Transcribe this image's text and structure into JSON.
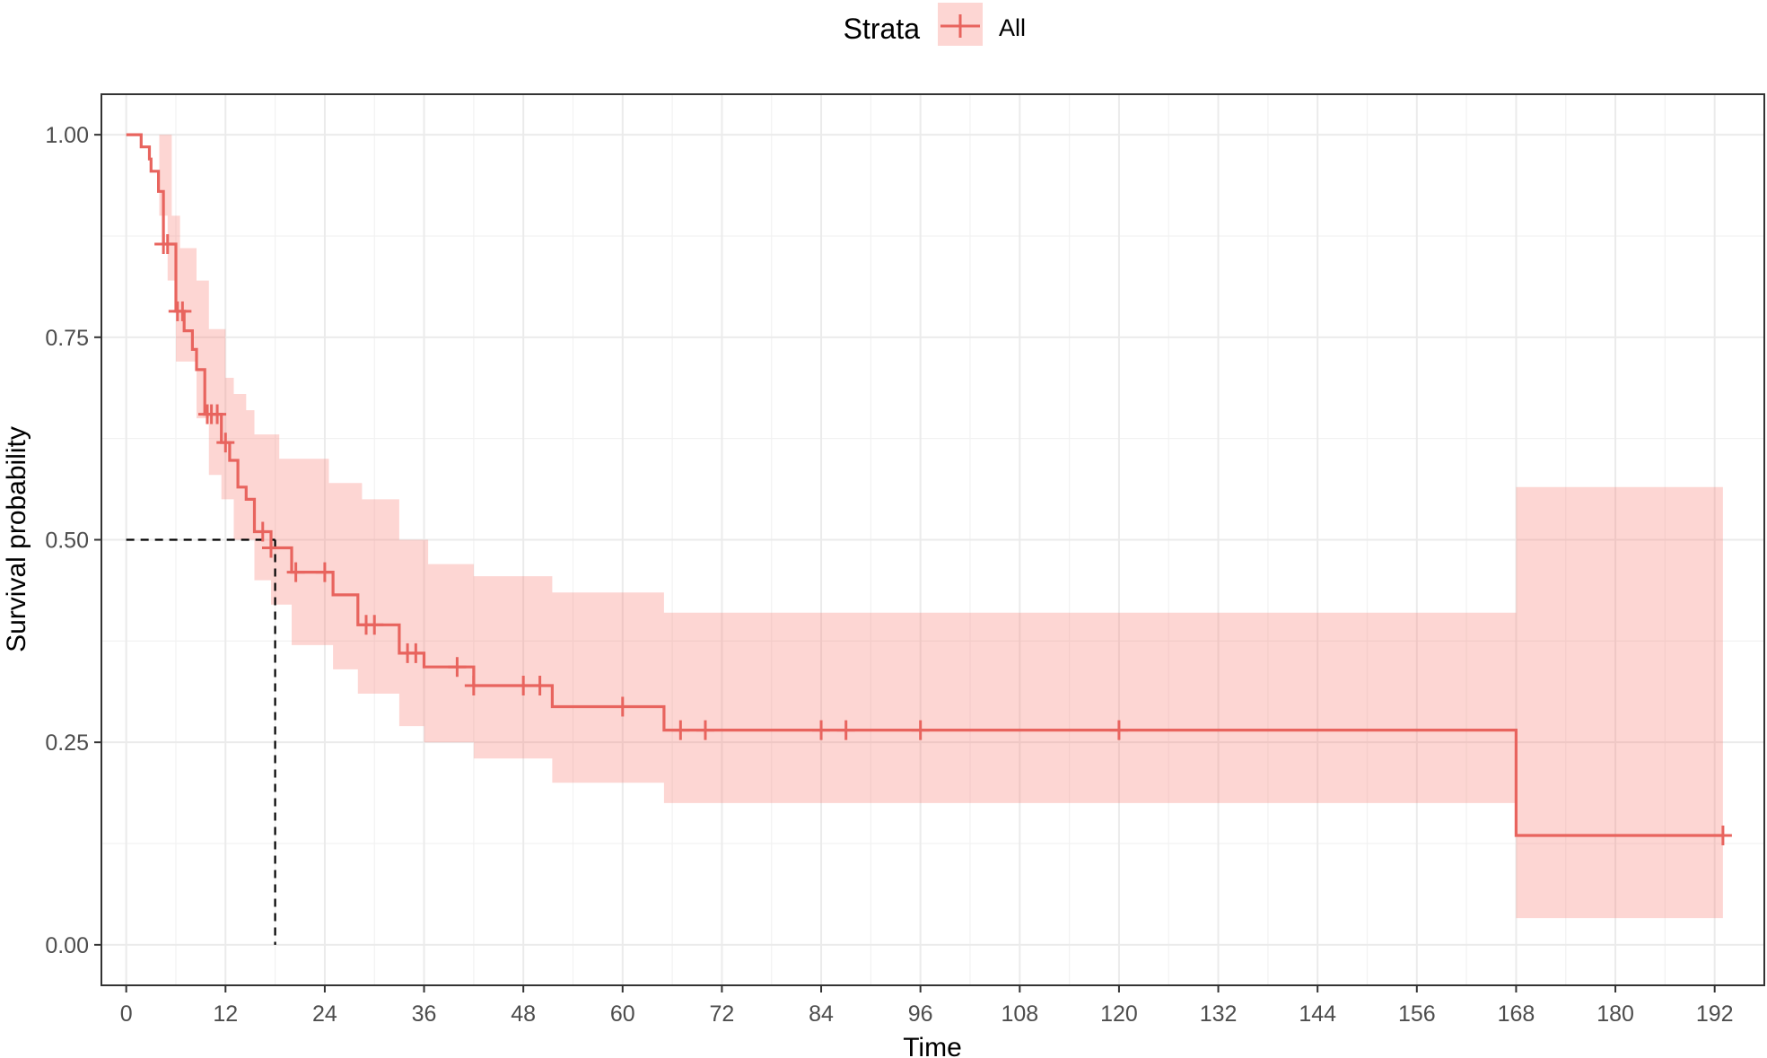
{
  "legend": {
    "title": "Strata",
    "entries": [
      "All"
    ]
  },
  "chart_data": {
    "type": "line",
    "subtype": "kaplan-meier survival curve with confidence band and censor marks",
    "xlabel": "Time",
    "ylabel": "Survival probability",
    "xlim": [
      -3,
      198
    ],
    "ylim": [
      -0.05,
      1.05
    ],
    "x_ticks": [
      0,
      12,
      24,
      36,
      48,
      60,
      72,
      84,
      96,
      108,
      120,
      132,
      144,
      156,
      168,
      180,
      192
    ],
    "x_tick_labels": [
      "0",
      "12",
      "24",
      "36",
      "48",
      "60",
      "72",
      "84",
      "96",
      "108",
      "120",
      "132",
      "144",
      "156",
      "168",
      "180",
      "192"
    ],
    "y_ticks": [
      0,
      0.25,
      0.5,
      0.75,
      1
    ],
    "y_tick_labels": [
      "0.00",
      "0.25",
      "0.50",
      "0.75",
      "1.00"
    ],
    "grid": true,
    "legend_position": "top",
    "colors": {
      "line": "#e8645e",
      "band": "#f8766d",
      "band_opacity": 0.3,
      "median_line": "#000000"
    },
    "series": [
      {
        "name": "All",
        "steps": [
          [
            0,
            1.0
          ],
          [
            1.8,
            0.985
          ],
          [
            2.8,
            0.97
          ],
          [
            3.0,
            0.955
          ],
          [
            3.9,
            0.93
          ],
          [
            4.5,
            0.865
          ],
          [
            6.0,
            0.782
          ],
          [
            7.0,
            0.758
          ],
          [
            8.0,
            0.735
          ],
          [
            8.5,
            0.71
          ],
          [
            9.5,
            0.655
          ],
          [
            11.5,
            0.62
          ],
          [
            12.5,
            0.598
          ],
          [
            13.5,
            0.565
          ],
          [
            14.5,
            0.55
          ],
          [
            15.5,
            0.51
          ],
          [
            17.5,
            0.49
          ],
          [
            20.0,
            0.46
          ],
          [
            25.0,
            0.432
          ],
          [
            28.0,
            0.395
          ],
          [
            33.0,
            0.36
          ],
          [
            36.0,
            0.343
          ],
          [
            42.0,
            0.32
          ],
          [
            51.5,
            0.294
          ],
          [
            65.0,
            0.265
          ],
          [
            168.0,
            0.135
          ],
          [
            193.0,
            0.135
          ]
        ],
        "ci_lower": [
          [
            0,
            1.0
          ],
          [
            4.0,
            0.9
          ],
          [
            5.0,
            0.82
          ],
          [
            6.0,
            0.72
          ],
          [
            8.5,
            0.65
          ],
          [
            10.0,
            0.58
          ],
          [
            11.5,
            0.55
          ],
          [
            13.0,
            0.5
          ],
          [
            15.5,
            0.45
          ],
          [
            17.5,
            0.42
          ],
          [
            20.0,
            0.37
          ],
          [
            25.0,
            0.34
          ],
          [
            28.0,
            0.31
          ],
          [
            33.0,
            0.27
          ],
          [
            36.0,
            0.25
          ],
          [
            42.0,
            0.23
          ],
          [
            51.5,
            0.2
          ],
          [
            65.0,
            0.175
          ],
          [
            168.0,
            0.033
          ],
          [
            193.0,
            0.033
          ]
        ],
        "ci_upper": [
          [
            0,
            1.0
          ],
          [
            3.0,
            1.0
          ],
          [
            5.5,
            0.9
          ],
          [
            6.5,
            0.86
          ],
          [
            8.5,
            0.82
          ],
          [
            10.0,
            0.76
          ],
          [
            12.0,
            0.7
          ],
          [
            13.0,
            0.68
          ],
          [
            14.5,
            0.66
          ],
          [
            15.5,
            0.63
          ],
          [
            18.5,
            0.6
          ],
          [
            24.5,
            0.57
          ],
          [
            28.5,
            0.55
          ],
          [
            33.0,
            0.5
          ],
          [
            36.5,
            0.47
          ],
          [
            42.0,
            0.455
          ],
          [
            51.5,
            0.435
          ],
          [
            65.0,
            0.41
          ],
          [
            168.0,
            0.565
          ],
          [
            193.0,
            0.565
          ]
        ],
        "censor_times": [
          4.5,
          5.0,
          6.2,
          6.8,
          9.8,
          10.3,
          11.0,
          12.0,
          16.5,
          17.5,
          20.5,
          24.0,
          29.0,
          30.0,
          34.0,
          35.0,
          40.0,
          42.0,
          48.0,
          50.0,
          60.0,
          67.0,
          70.0,
          84.0,
          87.0,
          96.0,
          120.0,
          193.0
        ]
      }
    ],
    "median_survival": {
      "time": 18.0,
      "probability": 0.5
    }
  }
}
